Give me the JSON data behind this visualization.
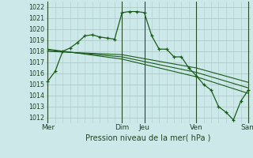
{
  "xlabel": "Pression niveau de la mer( hPa )",
  "ylim": [
    1011.5,
    1022.5
  ],
  "yticks": [
    1012,
    1013,
    1014,
    1015,
    1016,
    1017,
    1018,
    1019,
    1020,
    1021,
    1022
  ],
  "day_labels": [
    "Mer",
    "Dim",
    "Jeu",
    "Ven",
    "Sam"
  ],
  "day_positions": [
    0,
    10,
    13,
    20,
    27
  ],
  "background_color": "#cce8e8",
  "grid_color": "#aacccc",
  "line_color": "#1a5c1a",
  "dark_line_color": "#2a4a2a",
  "series_main": {
    "x": [
      0,
      1,
      2,
      3,
      4,
      5,
      6,
      7,
      8,
      9,
      10,
      11,
      12,
      13,
      14,
      15,
      16,
      17,
      18,
      19,
      20,
      21,
      22,
      23,
      24,
      25,
      26,
      27
    ],
    "y": [
      1015.3,
      1016.2,
      1018.0,
      1018.3,
      1018.8,
      1019.4,
      1019.5,
      1019.3,
      1019.2,
      1019.1,
      1021.5,
      1021.6,
      1021.6,
      1021.5,
      1019.4,
      1018.2,
      1018.2,
      1017.5,
      1017.5,
      1016.5,
      1015.8,
      1015.0,
      1014.5,
      1013.0,
      1012.5,
      1011.8,
      1013.5,
      1014.5
    ]
  },
  "series_flat": [
    {
      "x": [
        0,
        10,
        20,
        27
      ],
      "y": [
        1018.0,
        1017.7,
        1016.5,
        1015.2
      ]
    },
    {
      "x": [
        0,
        10,
        20,
        27
      ],
      "y": [
        1018.1,
        1017.5,
        1016.1,
        1014.7
      ]
    },
    {
      "x": [
        0,
        10,
        20,
        27
      ],
      "y": [
        1018.2,
        1017.3,
        1015.7,
        1014.2
      ]
    }
  ]
}
